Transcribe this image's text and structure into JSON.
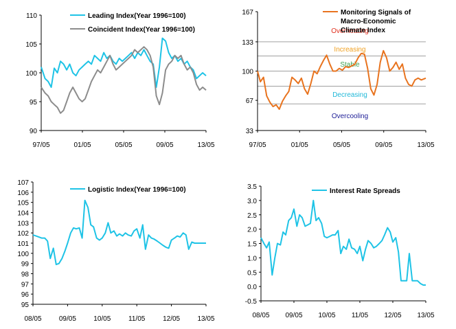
{
  "colors": {
    "cyan": "#1EC3E6",
    "gray": "#8C8C8C",
    "orange": "#E8731E",
    "red": "#E0301E",
    "amber": "#F0A020",
    "green": "#3CA050",
    "teal": "#20B8D8",
    "navy": "#202098",
    "axis": "#000000",
    "band": "#A0A0A0"
  },
  "chart_data": [
    {
      "type": "line",
      "xlim": [
        1997.33,
        2013.33
      ],
      "ylim": [
        90,
        110
      ],
      "yticks": [
        "90",
        "95",
        "100",
        "105",
        "110"
      ],
      "xticks": [
        {
          "x": 1997.33,
          "label": "97/05"
        },
        {
          "x": 2001.33,
          "label": "01/05"
        },
        {
          "x": 2005.33,
          "label": "05/05"
        },
        {
          "x": 2009.33,
          "label": "09/05"
        },
        {
          "x": 2013.33,
          "label": "13/05"
        }
      ],
      "legend_position": "top",
      "series": [
        {
          "name": "Leading Index(Year 1996=100)",
          "color_key": "cyan",
          "x": [
            1997.33,
            1997.7,
            1998.0,
            1998.3,
            1998.6,
            1998.9,
            1999.2,
            1999.5,
            1999.8,
            2000.1,
            2000.4,
            2000.7,
            2001.0,
            2001.3,
            2001.6,
            2001.9,
            2002.2,
            2002.5,
            2002.8,
            2003.1,
            2003.4,
            2003.7,
            2004.0,
            2004.3,
            2004.6,
            2004.9,
            2005.2,
            2005.5,
            2005.8,
            2006.1,
            2006.4,
            2006.7,
            2007.0,
            2007.3,
            2007.6,
            2007.9,
            2008.2,
            2008.5,
            2008.8,
            2009.1,
            2009.4,
            2009.7,
            2010.0,
            2010.3,
            2010.6,
            2010.9,
            2011.2,
            2011.5,
            2011.8,
            2012.1,
            2012.4,
            2012.7,
            2013.0,
            2013.33
          ],
          "values": [
            101,
            99,
            98.5,
            97.5,
            100.8,
            100,
            102,
            101.5,
            100.5,
            101.5,
            100,
            99.5,
            100.5,
            101,
            101.5,
            102,
            101.5,
            103,
            102.5,
            102,
            103.5,
            102.5,
            103,
            102,
            101.5,
            102.5,
            102,
            102.5,
            103,
            103.5,
            102.5,
            103.5,
            103,
            104,
            103,
            102,
            101.5,
            97.5,
            101,
            106,
            105.5,
            103.5,
            102.5,
            103,
            102,
            102.5,
            101.5,
            102,
            101,
            100.5,
            99,
            99.5,
            100,
            99.5
          ]
        },
        {
          "name": "Coincident Index(Year 1996=100)",
          "color_key": "gray",
          "x": [
            1997.33,
            1997.7,
            1998.0,
            1998.3,
            1998.6,
            1998.9,
            1999.2,
            1999.5,
            1999.8,
            2000.1,
            2000.4,
            2000.7,
            2001.0,
            2001.3,
            2001.6,
            2001.9,
            2002.2,
            2002.5,
            2002.8,
            2003.1,
            2003.4,
            2003.7,
            2004.0,
            2004.3,
            2004.6,
            2004.9,
            2005.2,
            2005.5,
            2005.8,
            2006.1,
            2006.4,
            2006.7,
            2007.0,
            2007.3,
            2007.6,
            2007.9,
            2008.2,
            2008.5,
            2008.8,
            2009.1,
            2009.4,
            2009.7,
            2010.0,
            2010.3,
            2010.6,
            2010.9,
            2011.2,
            2011.5,
            2011.8,
            2012.1,
            2012.4,
            2012.7,
            2013.0,
            2013.33
          ],
          "values": [
            97.5,
            96.5,
            96,
            95,
            94.5,
            94,
            93,
            93.5,
            95,
            96.5,
            97.5,
            96.5,
            95.5,
            95,
            95.5,
            97,
            98.5,
            99.5,
            100.5,
            100,
            101,
            102,
            103,
            101.5,
            100.5,
            101,
            101.5,
            102,
            102.5,
            103,
            104,
            103.5,
            104,
            104.5,
            104,
            103,
            101,
            96,
            94.5,
            96.5,
            100.5,
            101.5,
            102,
            103,
            102.5,
            103,
            101.5,
            100.5,
            101,
            100,
            98,
            97,
            97.5,
            97
          ]
        }
      ]
    },
    {
      "type": "line",
      "xlim": [
        1997.33,
        2013.33
      ],
      "ylim": [
        33,
        167
      ],
      "yticks": [
        "33",
        "67",
        "100",
        "133",
        "167"
      ],
      "xticks": [
        {
          "x": 1997.33,
          "label": "97/05"
        },
        {
          "x": 2001.33,
          "label": "01/05"
        },
        {
          "x": 2005.33,
          "label": "05/05"
        },
        {
          "x": 2009.33,
          "label": "09/05"
        },
        {
          "x": 2013.33,
          "label": "13/05"
        }
      ],
      "legend_position": "top-right",
      "bands": [
        {
          "y": 133,
          "label": "Overheating",
          "color_key": "red",
          "label_y": 146
        },
        {
          "y": 117,
          "label": "Increasing",
          "color_key": "amber",
          "label_y": 125
        },
        {
          "y": 100,
          "label": "Stable",
          "color_key": "green",
          "label_y": 108
        },
        {
          "y": 83,
          "label": "Decreasing",
          "color_key": "teal",
          "label_y": 74
        },
        {
          "y": 63,
          "label": "Overcooling",
          "color_key": "navy",
          "label_y": 50
        }
      ],
      "series": [
        {
          "name": "Monitoring Signals of Macro-Economic Climate Index",
          "color_key": "orange",
          "x": [
            1997.33,
            1997.6,
            1997.9,
            1998.2,
            1998.5,
            1998.8,
            1999.1,
            1999.4,
            1999.7,
            2000.0,
            2000.3,
            2000.6,
            2000.9,
            2001.2,
            2001.5,
            2001.8,
            2002.1,
            2002.4,
            2002.7,
            2003.0,
            2003.3,
            2003.6,
            2003.9,
            2004.2,
            2004.5,
            2004.8,
            2005.1,
            2005.4,
            2005.7,
            2006.0,
            2006.3,
            2006.6,
            2006.9,
            2007.2,
            2007.5,
            2007.8,
            2008.1,
            2008.4,
            2008.7,
            2009.0,
            2009.3,
            2009.6,
            2009.9,
            2010.2,
            2010.5,
            2010.8,
            2011.1,
            2011.4,
            2011.7,
            2012.0,
            2012.3,
            2012.6,
            2012.9,
            2013.33
          ],
          "values": [
            100,
            88,
            93,
            72,
            65,
            60,
            62,
            57,
            66,
            72,
            77,
            93,
            90,
            86,
            92,
            80,
            74,
            86,
            100,
            97,
            105,
            112,
            118,
            108,
            100,
            100,
            103,
            101,
            105,
            104,
            106,
            108,
            115,
            120,
            119,
            103,
            80,
            73,
            85,
            110,
            123,
            115,
            100,
            104,
            110,
            102,
            108,
            92,
            85,
            83,
            90,
            92,
            90,
            92
          ]
        }
      ]
    },
    {
      "type": "line",
      "xlim": [
        2008.33,
        2013.33
      ],
      "ylim": [
        95,
        107
      ],
      "yticks": [
        "95",
        "96",
        "97",
        "98",
        "99",
        "100",
        "101",
        "102",
        "103",
        "104",
        "105",
        "106",
        "107"
      ],
      "xticks": [
        {
          "x": 2008.33,
          "label": "08/05"
        },
        {
          "x": 2009.33,
          "label": "09/05"
        },
        {
          "x": 2010.33,
          "label": "10/05"
        },
        {
          "x": 2011.33,
          "label": "11/05"
        },
        {
          "x": 2012.33,
          "label": "12/05"
        },
        {
          "x": 2013.33,
          "label": "13/05"
        }
      ],
      "legend_position": "top",
      "series": [
        {
          "name": "Logistic Index(Year 1996=100)",
          "color_key": "cyan",
          "x": [
            2008.33,
            2008.42,
            2008.5,
            2008.58,
            2008.67,
            2008.75,
            2008.83,
            2008.92,
            2009.0,
            2009.08,
            2009.17,
            2009.25,
            2009.33,
            2009.42,
            2009.5,
            2009.58,
            2009.67,
            2009.75,
            2009.83,
            2009.92,
            2010.0,
            2010.08,
            2010.17,
            2010.25,
            2010.33,
            2010.42,
            2010.5,
            2010.58,
            2010.67,
            2010.75,
            2010.83,
            2010.92,
            2011.0,
            2011.08,
            2011.17,
            2011.25,
            2011.33,
            2011.42,
            2011.5,
            2011.58,
            2011.67,
            2011.75,
            2011.83,
            2011.92,
            2012.0,
            2012.08,
            2012.17,
            2012.25,
            2012.33,
            2012.42,
            2012.5,
            2012.58,
            2012.67,
            2012.75,
            2012.83,
            2012.92,
            2013.0,
            2013.08,
            2013.17,
            2013.25,
            2013.33
          ],
          "values": [
            101.8,
            101.7,
            101.6,
            101.5,
            101.5,
            101.2,
            99.5,
            100.5,
            98.9,
            99.0,
            99.5,
            100.2,
            101.0,
            102.0,
            102.5,
            102.4,
            102.5,
            101.5,
            105.2,
            104.5,
            102.8,
            102.6,
            101.5,
            101.3,
            101.5,
            102.0,
            103.0,
            102.0,
            102.2,
            101.7,
            101.9,
            101.7,
            102.0,
            101.8,
            101.7,
            102.2,
            102.4,
            101.5,
            102.8,
            100.4,
            101.8,
            101.5,
            101.4,
            101.2,
            101.0,
            100.8,
            100.6,
            100.5,
            101.3,
            101.5,
            101.7,
            101.6,
            102.0,
            101.8,
            100.4,
            101.1,
            101.0,
            101.0,
            101.0,
            101.0,
            101.0
          ]
        }
      ]
    },
    {
      "type": "line",
      "xlim": [
        2008.33,
        2013.33
      ],
      "ylim": [
        -0.5,
        3.5
      ],
      "yticks": [
        "-0.5",
        "0.0",
        "0.5",
        "1.0",
        "1.5",
        "2.0",
        "2.5",
        "3.0",
        "3.5"
      ],
      "xticks": [
        {
          "x": 2008.33,
          "label": "08/05"
        },
        {
          "x": 2009.33,
          "label": "09/05"
        },
        {
          "x": 2010.33,
          "label": "10/05"
        },
        {
          "x": 2011.33,
          "label": "11/05"
        },
        {
          "x": 2012.33,
          "label": "12/05"
        },
        {
          "x": 2013.33,
          "label": "13/05"
        }
      ],
      "legend_position": "top-right",
      "series": [
        {
          "name": "Interest Rate Spreads",
          "color_key": "cyan",
          "x": [
            2008.33,
            2008.42,
            2008.5,
            2008.58,
            2008.67,
            2008.75,
            2008.83,
            2008.92,
            2009.0,
            2009.08,
            2009.17,
            2009.25,
            2009.33,
            2009.42,
            2009.5,
            2009.58,
            2009.67,
            2009.75,
            2009.83,
            2009.92,
            2010.0,
            2010.08,
            2010.17,
            2010.25,
            2010.33,
            2010.42,
            2010.5,
            2010.58,
            2010.67,
            2010.75,
            2010.83,
            2010.92,
            2011.0,
            2011.08,
            2011.17,
            2011.25,
            2011.33,
            2011.42,
            2011.5,
            2011.58,
            2011.67,
            2011.75,
            2011.83,
            2011.92,
            2012.0,
            2012.08,
            2012.17,
            2012.25,
            2012.33,
            2012.42,
            2012.5,
            2012.58,
            2012.67,
            2012.75,
            2012.83,
            2012.92,
            2013.0,
            2013.08,
            2013.17,
            2013.25,
            2013.33
          ],
          "values": [
            1.7,
            1.5,
            1.35,
            1.55,
            0.4,
            1.0,
            1.5,
            1.45,
            1.9,
            1.8,
            2.3,
            2.4,
            2.7,
            2.1,
            2.5,
            2.4,
            2.1,
            2.15,
            2.2,
            3.0,
            2.3,
            2.4,
            2.2,
            1.75,
            1.7,
            1.75,
            1.8,
            1.8,
            1.95,
            1.15,
            1.4,
            1.3,
            1.65,
            1.35,
            1.3,
            1.15,
            1.4,
            0.9,
            1.3,
            1.6,
            1.5,
            1.35,
            1.4,
            1.5,
            1.6,
            1.8,
            2.05,
            1.9,
            1.55,
            1.7,
            1.2,
            0.2,
            0.2,
            0.2,
            1.15,
            0.2,
            0.2,
            0.2,
            0.1,
            0.05,
            0.05
          ]
        }
      ]
    }
  ]
}
